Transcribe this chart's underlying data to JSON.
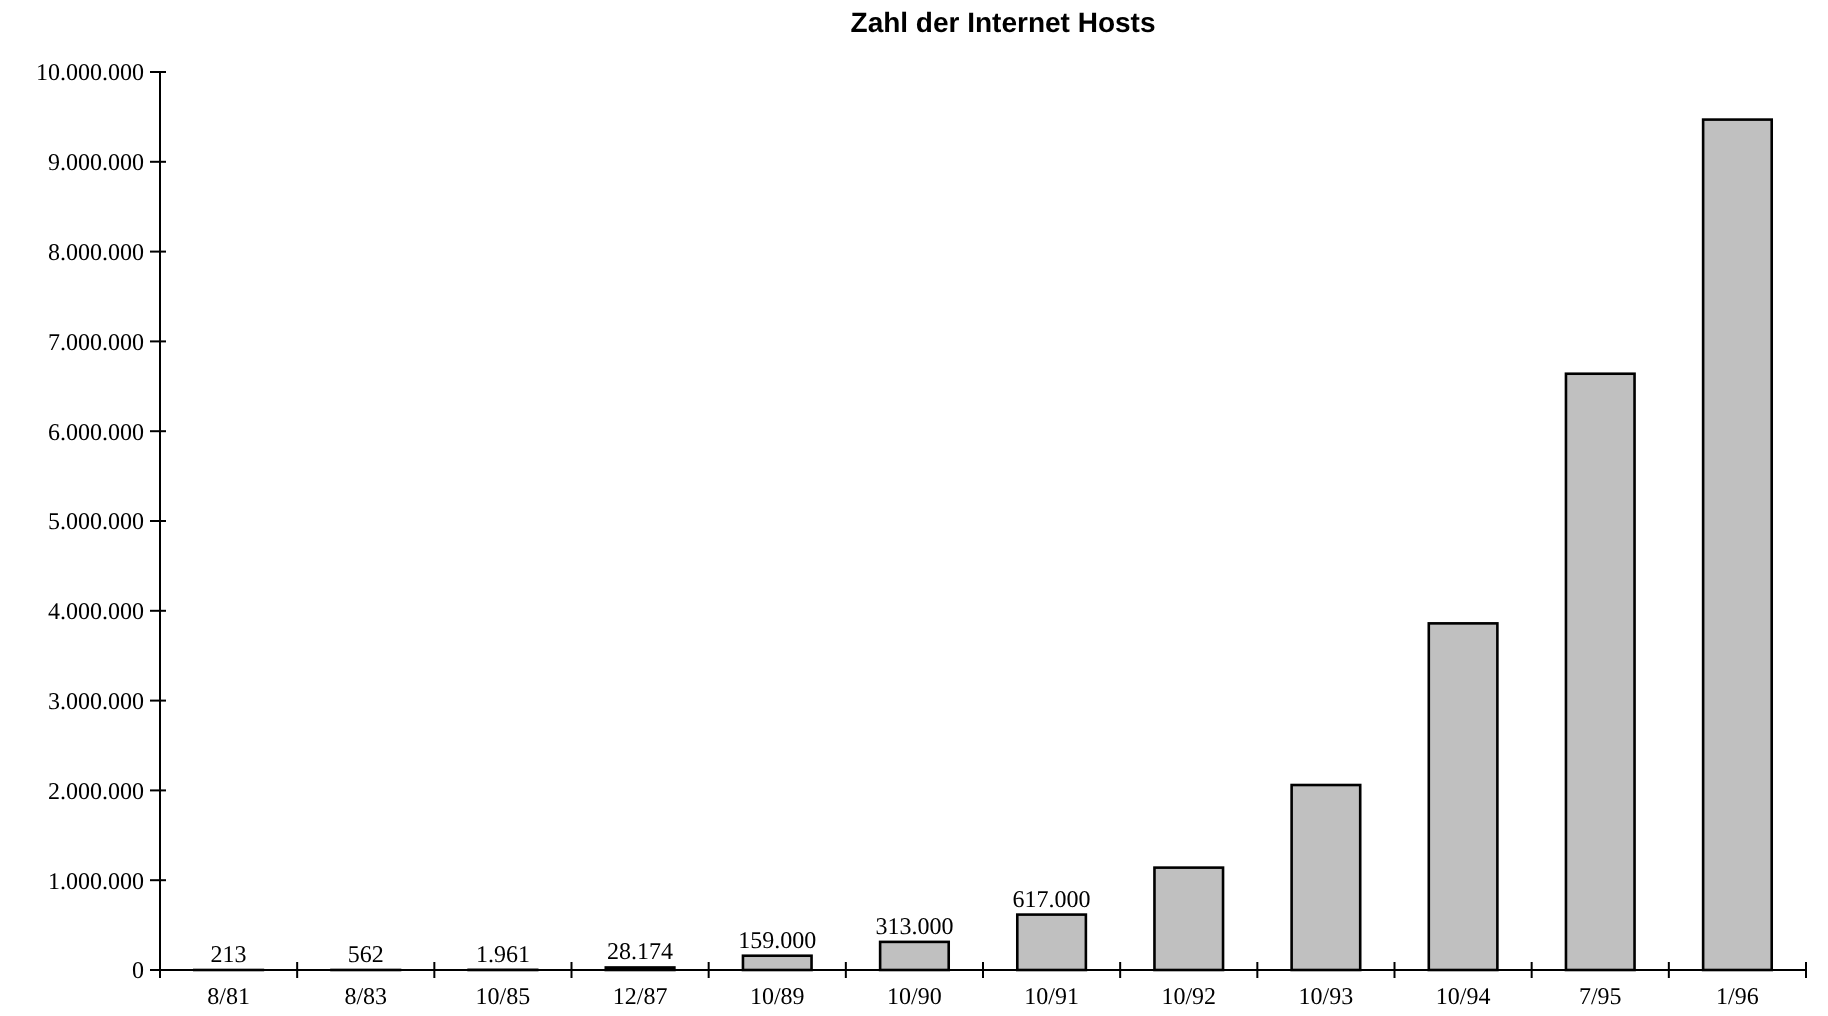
{
  "chart_data": {
    "type": "bar",
    "title": "Zahl der Internet Hosts",
    "categories": [
      "8/81",
      "8/83",
      "10/85",
      "12/87",
      "10/89",
      "10/90",
      "10/91",
      "10/92",
      "10/93",
      "10/94",
      "7/95",
      "1/96"
    ],
    "values": [
      213,
      562,
      1961,
      28174,
      159000,
      313000,
      617000,
      1140000,
      2060000,
      3860000,
      6640000,
      9470000
    ],
    "value_labels": [
      "213",
      "562",
      "1.961",
      "28.174",
      "159.000",
      "313.000",
      "617.000",
      null,
      null,
      null,
      null,
      null
    ],
    "color": "#c0c0c0",
    "ylim": [
      0,
      10000000
    ],
    "yticks": [
      0,
      {
        "value": 1000000,
        "label": "1.000.000"
      },
      {
        "value": 2000000,
        "label": "2.000.000"
      },
      {
        "value": 3000000,
        "label": "3.000.000"
      },
      {
        "value": 4000000,
        "label": "4.000.000"
      },
      {
        "value": 5000000,
        "label": "5.000.000"
      },
      {
        "value": 6000000,
        "label": "6.000.000"
      },
      {
        "value": 7000000,
        "label": "7.000.000"
      },
      {
        "value": 8000000,
        "label": "8.000.000"
      },
      {
        "value": 9000000,
        "label": "9.000.000"
      },
      {
        "value": 10000000,
        "label": "10.000.000"
      }
    ],
    "grid": false
  }
}
